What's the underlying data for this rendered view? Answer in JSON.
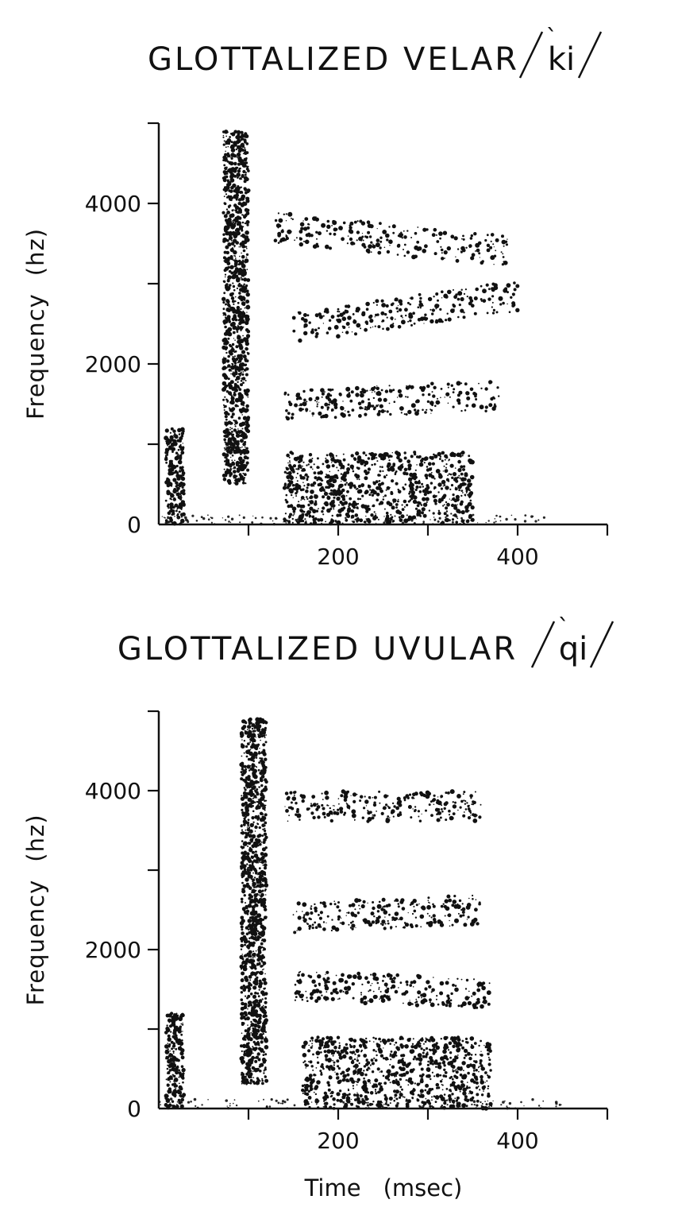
{
  "chart_data": [
    {
      "type": "spectrogram",
      "title": "GLOTTALIZED VELAR",
      "transcription": "ki",
      "ylabel": "Frequency",
      "yunit": "(hz)",
      "xlabel": "",
      "xunit": "",
      "xlim": [
        0,
        500
      ],
      "ylim": [
        0,
        5000
      ],
      "xticks": [
        100,
        200,
        300,
        400,
        500
      ],
      "xtick_labels": [
        "200",
        "400"
      ],
      "xtick_label_values": [
        200,
        400
      ],
      "yticks": [
        1000,
        2000,
        3000,
        4000,
        5000
      ],
      "ytick_labels": [
        "0",
        "2000",
        "4000"
      ],
      "ytick_label_values": [
        0,
        2000,
        4000
      ],
      "events": [
        {
          "name": "release burst",
          "t_start": 8,
          "t_end": 28,
          "f_low": 0,
          "f_high": 1200
        },
        {
          "name": "ejective release spike",
          "t_start": 72,
          "t_end": 100,
          "f_low": 500,
          "f_high": 4900
        },
        {
          "name": "vowel voicing",
          "t_start": 140,
          "t_end": 350,
          "f_low": 0,
          "f_high": 900
        }
      ],
      "formants": [
        {
          "name": "F2",
          "t_start": 140,
          "t_end": 380,
          "f_start": 1500,
          "f_end": 1600
        },
        {
          "name": "F3",
          "t_start": 150,
          "t_end": 400,
          "f_start": 2450,
          "f_end": 2850
        },
        {
          "name": "F4",
          "t_start": 130,
          "t_end": 390,
          "f_start": 3700,
          "f_end": 3400
        }
      ]
    },
    {
      "type": "spectrogram",
      "title": "GLOTTALIZED UVULAR",
      "transcription": "qi",
      "ylabel": "Frequency",
      "yunit": "(hz)",
      "xlabel": "Time",
      "xunit": "(msec)",
      "xlim": [
        0,
        500
      ],
      "ylim": [
        0,
        5000
      ],
      "xticks": [
        100,
        200,
        300,
        400,
        500
      ],
      "xtick_labels": [
        "200",
        "400"
      ],
      "xtick_label_values": [
        200,
        400
      ],
      "yticks": [
        1000,
        2000,
        3000,
        4000,
        5000
      ],
      "ytick_labels": [
        "0",
        "2000",
        "4000"
      ],
      "ytick_label_values": [
        0,
        2000,
        4000
      ],
      "events": [
        {
          "name": "release burst",
          "t_start": 8,
          "t_end": 28,
          "f_low": 0,
          "f_high": 1200
        },
        {
          "name": "ejective release spike",
          "t_start": 92,
          "t_end": 120,
          "f_low": 300,
          "f_high": 4900
        },
        {
          "name": "vowel voicing",
          "t_start": 160,
          "t_end": 370,
          "f_low": 0,
          "f_high": 900
        }
      ],
      "formants": [
        {
          "name": "F2",
          "t_start": 150,
          "t_end": 370,
          "f_start": 1550,
          "f_end": 1450
        },
        {
          "name": "F3",
          "t_start": 150,
          "t_end": 360,
          "f_start": 2400,
          "f_end": 2500
        },
        {
          "name": "F4",
          "t_start": 140,
          "t_end": 360,
          "f_start": 3800,
          "f_end": 3800
        }
      ]
    }
  ],
  "colors": {
    "ink": "#111111",
    "background": "#ffffff"
  }
}
